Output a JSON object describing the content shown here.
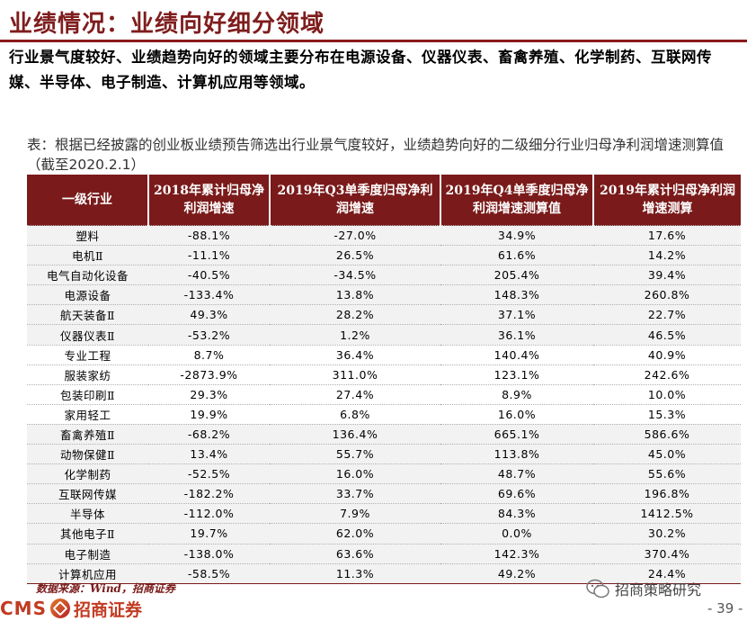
{
  "header": {
    "title": "业绩情况：业绩向好细分领域"
  },
  "intro": "行业景气度较好、业绩趋势向好的领域主要分布在电源设备、仪器仪表、畜禽养殖、化学制药、互联网传媒、半导体、电子制造、计算机应用等领域。",
  "caption": "表：根据已经披露的创业板业绩预告筛选出行业景气度较好，业绩趋势向好的二级细分行业归母净利润增速测算值（截至2020.2.1）",
  "table": {
    "headers": [
      "一级行业",
      "2018年累计归母净利润增速",
      "2019年Q3单季度归母净利润增速",
      "2019年Q4单季度归母净利润增速测算值",
      "2019年累计归母净利润增速测算"
    ],
    "rows": [
      [
        "塑料",
        "-88.1%",
        "-27.0%",
        "34.9%",
        "17.6%"
      ],
      [
        "电机Ⅱ",
        "-11.1%",
        "26.5%",
        "61.6%",
        "14.2%"
      ],
      [
        "电气自动化设备",
        "-40.5%",
        "-34.5%",
        "205.4%",
        "39.4%"
      ],
      [
        "电源设备",
        "-133.4%",
        "13.8%",
        "148.3%",
        "260.8%"
      ],
      [
        "航天装备Ⅱ",
        "49.3%",
        "28.2%",
        "37.1%",
        "22.7%"
      ],
      [
        "仪器仪表Ⅱ",
        "-53.2%",
        "1.2%",
        "36.1%",
        "46.5%"
      ],
      [
        "专业工程",
        "8.7%",
        "36.4%",
        "140.4%",
        "40.9%"
      ],
      [
        "服装家纺",
        "-2873.9%",
        "311.0%",
        "123.1%",
        "242.6%"
      ],
      [
        "包装印刷Ⅱ",
        "29.3%",
        "27.4%",
        "8.9%",
        "10.0%"
      ],
      [
        "家用轻工",
        "19.9%",
        "6.8%",
        "16.0%",
        "15.3%"
      ],
      [
        "畜禽养殖Ⅱ",
        "-68.2%",
        "136.4%",
        "665.1%",
        "586.6%"
      ],
      [
        "动物保健Ⅱ",
        "13.4%",
        "55.7%",
        "113.8%",
        "45.0%"
      ],
      [
        "化学制药",
        "-52.5%",
        "16.0%",
        "48.7%",
        "55.6%"
      ],
      [
        "互联网传媒",
        "-182.2%",
        "33.7%",
        "69.6%",
        "196.8%"
      ],
      [
        "半导体",
        "-112.0%",
        "7.9%",
        "84.3%",
        "1412.5%"
      ],
      [
        "其他电子Ⅱ",
        "19.7%",
        "62.0%",
        "0.0%",
        "30.2%"
      ],
      [
        "电子制造",
        "-138.0%",
        "63.6%",
        "142.3%",
        "370.4%"
      ],
      [
        "计算机应用",
        "-58.5%",
        "11.3%",
        "49.2%",
        "24.4%"
      ]
    ]
  },
  "footer": {
    "source": "数据来源：Wind，招商证券",
    "logo_text": "CMS",
    "brand": "招商证券",
    "wechat": "招商策略研究",
    "page": "- 39 -"
  },
  "colors": {
    "accent": "#7a1a1a",
    "highlight_row": "#f2f2f2"
  }
}
